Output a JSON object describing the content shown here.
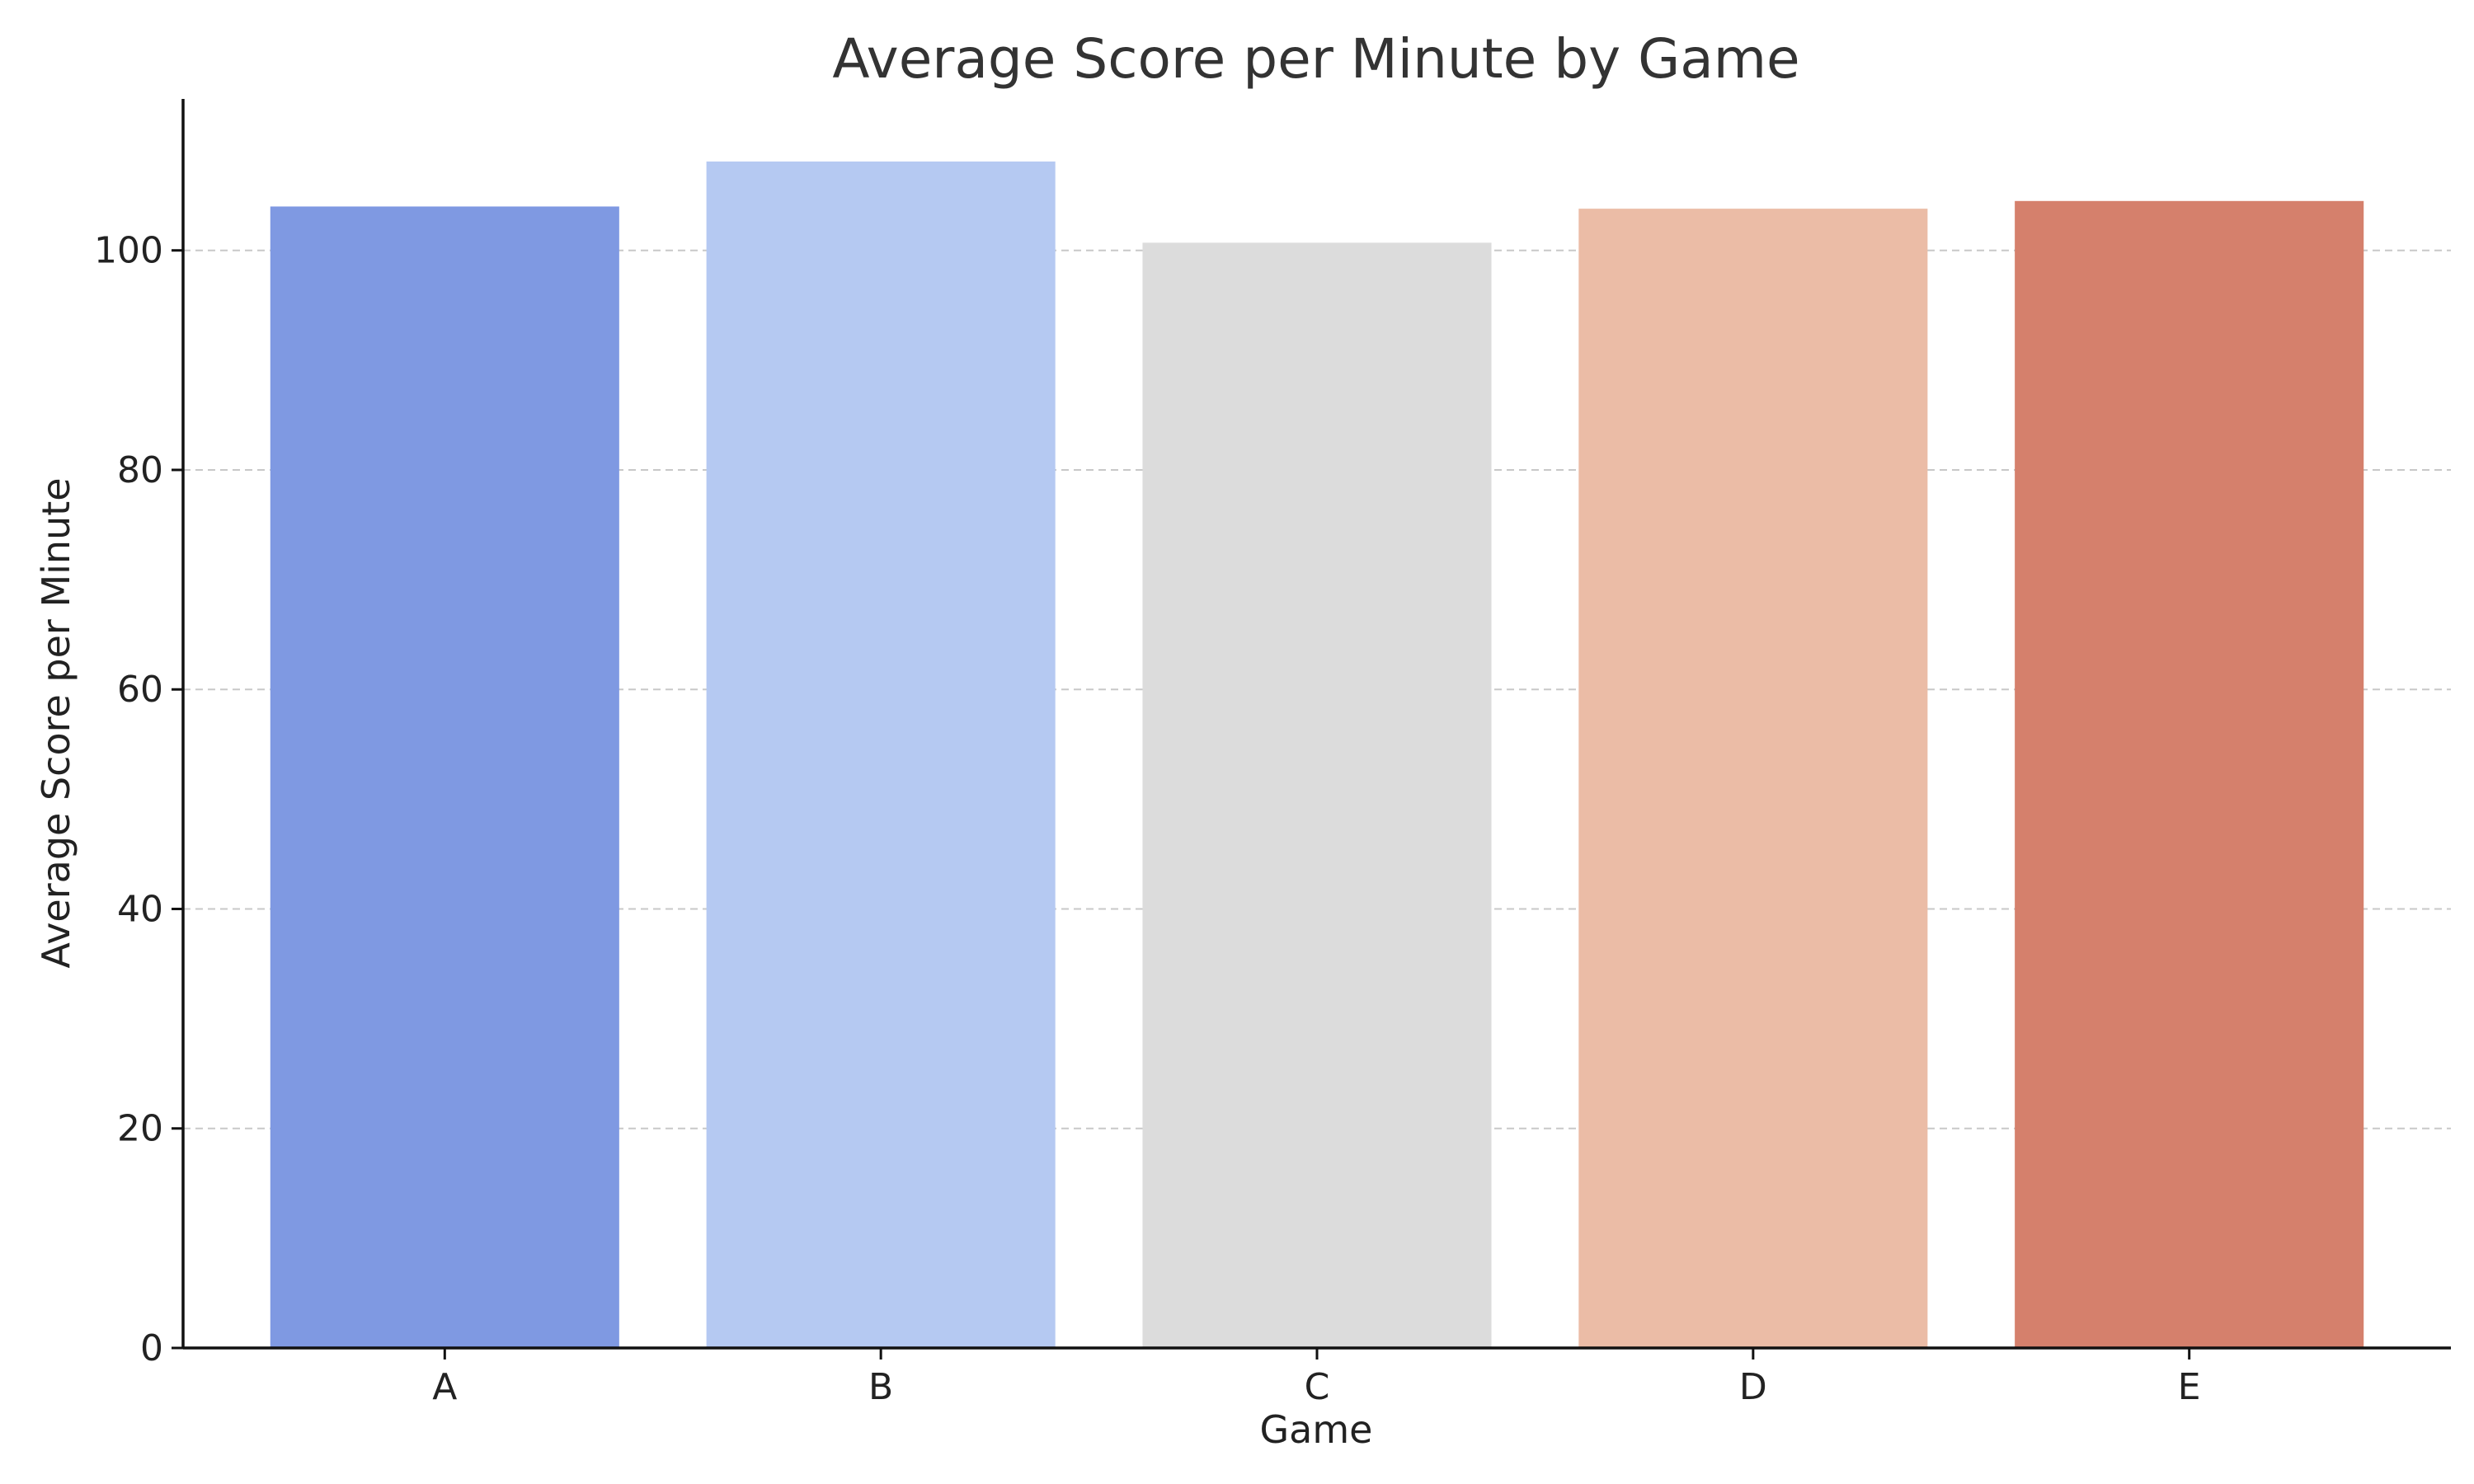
{
  "chart_data": {
    "type": "bar",
    "title": "Average Score per Minute by Game",
    "xlabel": "Game",
    "ylabel": "Average Score per Minute",
    "categories": [
      "A",
      "B",
      "C",
      "D",
      "E"
    ],
    "values": [
      104.0,
      108.1,
      100.7,
      103.8,
      104.5
    ],
    "colors": [
      "#7f99e2",
      "#b5c9f2",
      "#dcdcdc",
      "#ebbca6",
      "#d5806c"
    ],
    "ylim": [
      0,
      113.8
    ],
    "yticks": [
      0,
      20,
      40,
      60,
      80,
      100
    ],
    "grid": true,
    "grid_axis": "y",
    "grid_style": "dashed",
    "legend": false
  }
}
